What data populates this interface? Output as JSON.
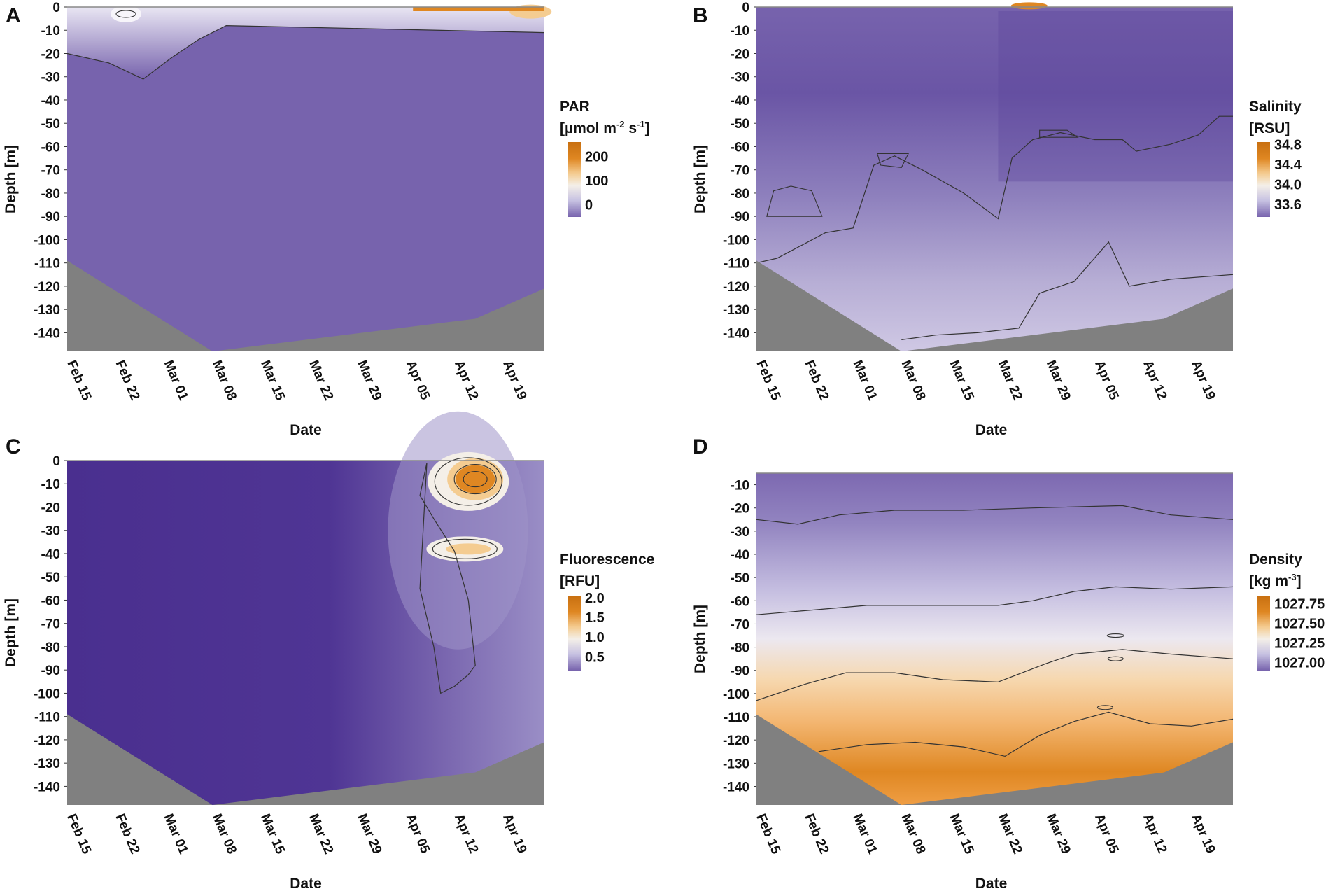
{
  "colors": {
    "purple_dark": "#4a2f8f",
    "purple_mid": "#7763ad",
    "lavender": "#c7c2e2",
    "white": "#f4efe8",
    "cream": "#f4cc91",
    "orange": "#df8722",
    "orange_dark": "#c86f10",
    "seafloor": "#808080"
  },
  "shared_axes": {
    "ylabel": "Depth [m]",
    "xlabel": "Date",
    "x_ticks": [
      "Feb 15",
      "Feb 22",
      "Mar 01",
      "Mar 08",
      "Mar 15",
      "Mar 22",
      "Mar 29",
      "Apr 05",
      "Apr 12",
      "Apr 19"
    ],
    "xlim_days": [
      0,
      69
    ],
    "x_tick_days": [
      0,
      7,
      14,
      21,
      28,
      35,
      42,
      49,
      56,
      63
    ]
  },
  "chart_data": [
    {
      "panel": "A",
      "type": "heatmap",
      "title": "PAR",
      "unit": "[µmol m-2 s-1]",
      "unit_parts": {
        "base": "[µmol m",
        "e1": "-2",
        "mid": " s",
        "e2": "-1",
        "end": "]"
      },
      "colorbar_ticks": [
        "200",
        "100",
        "0"
      ],
      "colorbar_tick_values": [
        200,
        100,
        0
      ],
      "colorbar_range": [
        -50,
        260
      ],
      "ylim": [
        -148,
        0
      ],
      "y_ticks": [
        "0",
        "-10",
        "-20",
        "-30",
        "-40",
        "-50",
        "-60",
        "-70",
        "-80",
        "-90",
        "-100",
        "-110",
        "-120",
        "-130",
        "-140"
      ],
      "y_tick_values": [
        0,
        -10,
        -20,
        -30,
        -40,
        -50,
        -60,
        -70,
        -80,
        -90,
        -100,
        -110,
        -120,
        -130,
        -140
      ],
      "bottom_depth": {
        "days": [
          0,
          21,
          59,
          69
        ],
        "depth": [
          -109,
          -148,
          -134,
          -121
        ]
      },
      "contours": [
        {
          "days": [
            0,
            6,
            11,
            15,
            19,
            23,
            69
          ],
          "depth": [
            -20,
            -24,
            -31,
            -22,
            -14,
            -8,
            -11
          ]
        }
      ]
    },
    {
      "panel": "B",
      "type": "heatmap",
      "title": "Salinity",
      "unit": "[RSU]",
      "colorbar_ticks": [
        "34.8",
        "34.4",
        "34.0",
        "33.6"
      ],
      "colorbar_tick_values": [
        34.8,
        34.4,
        34.0,
        33.6
      ],
      "colorbar_range": [
        33.35,
        34.85
      ],
      "ylim": [
        -148,
        0
      ],
      "y_ticks": [
        "0",
        "-10",
        "-20",
        "-30",
        "-40",
        "-50",
        "-60",
        "-70",
        "-80",
        "-90",
        "-100",
        "-110",
        "-120",
        "-130",
        "-140"
      ],
      "y_tick_values": [
        0,
        -10,
        -20,
        -30,
        -40,
        -50,
        -60,
        -70,
        -80,
        -90,
        -100,
        -110,
        -120,
        -130,
        -140
      ],
      "bottom_depth": {
        "days": [
          0,
          21,
          59,
          69
        ],
        "depth": [
          -109,
          -148,
          -134,
          -121
        ]
      },
      "contours": [
        {
          "days": [
            0,
            3,
            10,
            14,
            17,
            20,
            24,
            30,
            35,
            37,
            40,
            44,
            49,
            53,
            55,
            60,
            64,
            67,
            69
          ],
          "depth": [
            -110,
            -108,
            -97,
            -95,
            -68,
            -64,
            -70,
            -80,
            -91,
            -65,
            -57,
            -54,
            -57,
            -57,
            -62,
            -59,
            -55,
            -47,
            -47
          ]
        },
        {
          "days": [
            21,
            26,
            32,
            38,
            41,
            44,
            46,
            51,
            54,
            60,
            69
          ],
          "depth": [
            -143,
            -141,
            -140,
            -138,
            -123,
            -120,
            -118,
            -101,
            -120,
            -117,
            -115
          ]
        }
      ]
    },
    {
      "panel": "C",
      "type": "heatmap",
      "title": "Fluorescence",
      "unit": "[RFU]",
      "colorbar_ticks": [
        "2.0",
        "1.5",
        "1.0",
        "0.5"
      ],
      "colorbar_tick_values": [
        2.0,
        1.5,
        1.0,
        0.5
      ],
      "colorbar_range": [
        0.15,
        2.05
      ],
      "ylim": [
        -148,
        0
      ],
      "y_ticks": [
        "0",
        "-10",
        "-20",
        "-30",
        "-40",
        "-50",
        "-60",
        "-70",
        "-80",
        "-90",
        "-100",
        "-110",
        "-120",
        "-130",
        "-140"
      ],
      "y_tick_values": [
        0,
        -10,
        -20,
        -30,
        -40,
        -50,
        -60,
        -70,
        -80,
        -90,
        -100,
        -110,
        -120,
        -130,
        -140
      ],
      "bottom_depth": {
        "days": [
          0,
          21,
          59,
          69
        ],
        "depth": [
          -109,
          -148,
          -134,
          -121
        ]
      },
      "contours": [
        {
          "days": [
            52,
            51,
            53,
            56,
            58,
            59,
            58,
            56,
            54,
            53,
            51
          ],
          "depth": [
            -1,
            -15,
            -25,
            -39,
            -60,
            -88,
            -92,
            -97,
            -100,
            -80,
            -55
          ]
        }
      ]
    },
    {
      "panel": "D",
      "type": "heatmap",
      "title": "Density",
      "unit": "[kg m-3]",
      "unit_parts": {
        "base": "[kg m",
        "e1": "-3",
        "end": "]"
      },
      "colorbar_ticks": [
        "1027.75",
        "1027.50",
        "1027.25",
        "1027.00"
      ],
      "colorbar_tick_values": [
        1027.75,
        1027.5,
        1027.25,
        1027.0
      ],
      "colorbar_range": [
        1026.9,
        1027.85
      ],
      "ylim": [
        -148,
        -5
      ],
      "y_ticks": [
        "-10",
        "-20",
        "-30",
        "-40",
        "-50",
        "-60",
        "-70",
        "-80",
        "-90",
        "-100",
        "-110",
        "-120",
        "-130",
        "-140"
      ],
      "y_tick_values": [
        -10,
        -20,
        -30,
        -40,
        -50,
        -60,
        -70,
        -80,
        -90,
        -100,
        -110,
        -120,
        -130,
        -140
      ],
      "bottom_depth": {
        "days": [
          0,
          21,
          59,
          69
        ],
        "depth": [
          -109,
          -148,
          -134,
          -121
        ]
      },
      "contours": [
        {
          "days": [
            0,
            6,
            12,
            20,
            30,
            40,
            53,
            60,
            69
          ],
          "depth": [
            -25,
            -27,
            -23,
            -21,
            -21,
            -20,
            -19,
            -23,
            -25
          ]
        },
        {
          "days": [
            0,
            8,
            16,
            24,
            35,
            40,
            46,
            52,
            60,
            69
          ],
          "depth": [
            -66,
            -64,
            -62,
            -62,
            -62,
            -60,
            -56,
            -54,
            -55,
            -54
          ]
        },
        {
          "days": [
            0,
            7,
            13,
            20,
            27,
            35,
            42,
            46,
            53,
            60,
            69
          ],
          "depth": [
            -103,
            -96,
            -91,
            -91,
            -94,
            -95,
            -87,
            -83,
            -81,
            -83,
            -85
          ]
        },
        {
          "days": [
            9,
            16,
            23,
            30,
            36,
            41,
            46,
            51,
            57,
            63,
            69
          ],
          "depth": [
            -125,
            -122,
            -121,
            -123,
            -127,
            -118,
            -112,
            -108,
            -113,
            -114,
            -111
          ]
        }
      ]
    }
  ]
}
